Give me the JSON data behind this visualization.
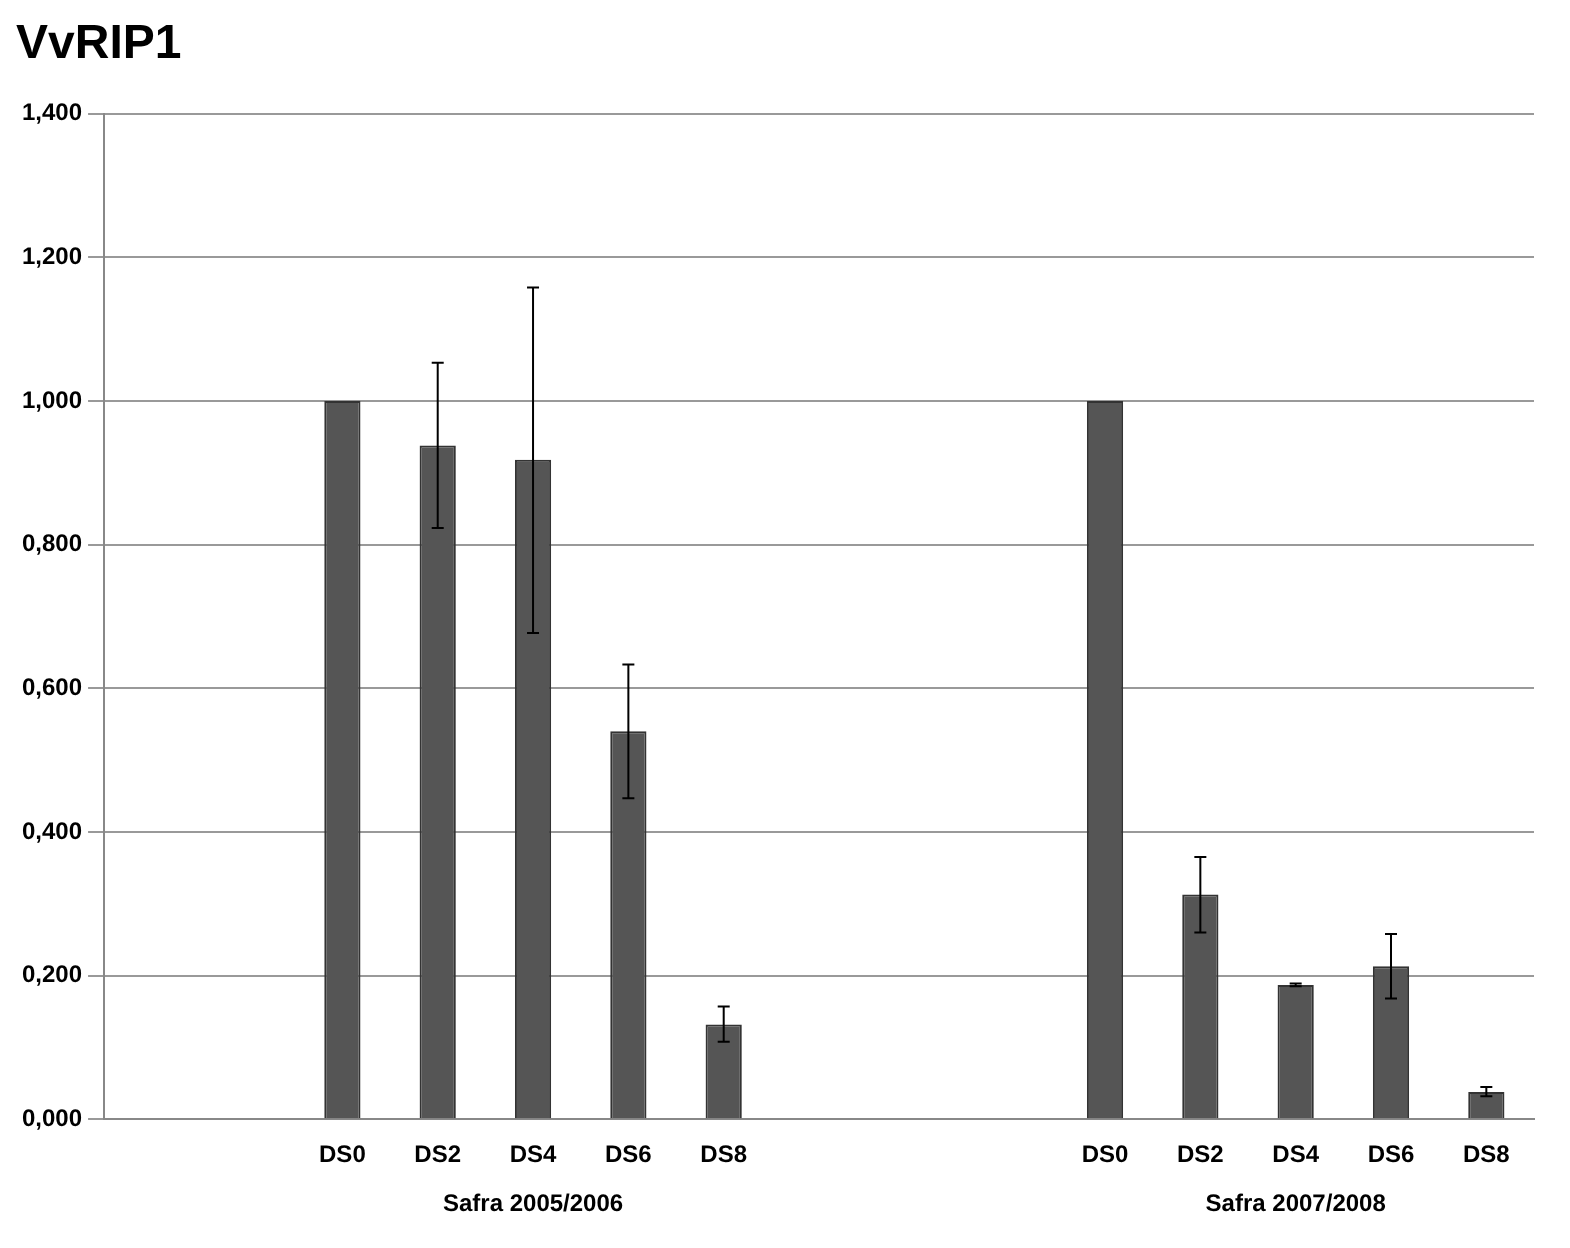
{
  "chart_data": {
    "type": "bar",
    "title": "VvRIP1",
    "categories": [
      null,
      null,
      "DS0",
      "DS2",
      "DS4",
      "DS6",
      "DS8",
      null,
      null,
      null,
      "DS0",
      "DS2",
      "DS4",
      "DS6",
      "DS8"
    ],
    "values": [
      null,
      null,
      1.0,
      0.938,
      0.918,
      0.54,
      0.132,
      null,
      null,
      null,
      1.0,
      0.313,
      0.187,
      0.213,
      0.038
    ],
    "errors": [
      null,
      null,
      null,
      [
        0.823,
        1.053
      ],
      [
        0.677,
        1.158
      ],
      [
        0.447,
        0.633
      ],
      [
        0.108,
        0.157
      ],
      null,
      null,
      null,
      null,
      [
        0.26,
        0.365
      ],
      [
        0.185,
        0.189
      ],
      [
        0.168,
        0.258
      ],
      [
        0.032,
        0.045
      ]
    ],
    "color": "#555555",
    "ylim": [
      0,
      1.4
    ],
    "yticks": [
      {
        "value": 0,
        "label": "0,000"
      },
      {
        "value": 0.2,
        "label": "0,200"
      },
      {
        "value": 0.4,
        "label": "0,400"
      },
      {
        "value": 0.6,
        "label": "0,600"
      },
      {
        "value": 0.8,
        "label": "0,800"
      },
      {
        "value": 1.0,
        "label": "1,000"
      },
      {
        "value": 1.2,
        "label": "1,200"
      },
      {
        "value": 1.4,
        "label": "1,400"
      }
    ],
    "grid": "y",
    "annotations": [
      "Safra 2005/2006",
      "Safra 2007/2008"
    ]
  }
}
